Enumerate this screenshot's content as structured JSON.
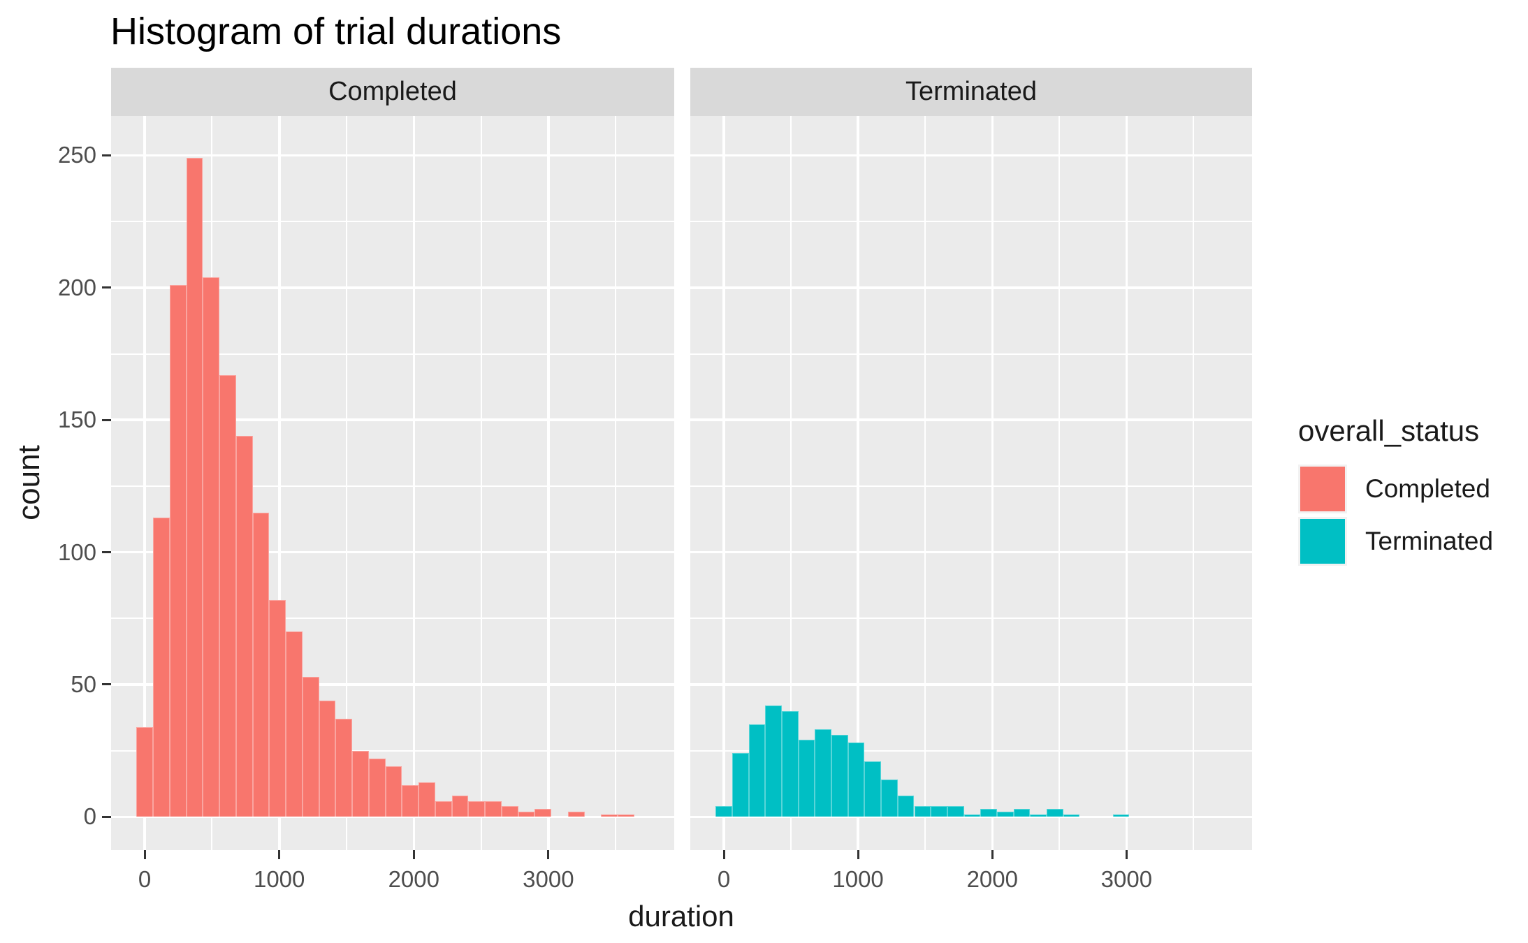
{
  "title": "Histogram of trial durations",
  "style": {
    "background": "#FFFFFF",
    "panel_bg": "#EBEBEB",
    "strip_bg": "#D9D9D9",
    "gridline": "#FFFFFF",
    "tick_mark_color": "#333333",
    "tick_label_color": "#4D4D4D",
    "text_color": "#1A1A1A",
    "completed_color": "#F8766D",
    "terminated_color": "#00BFC4"
  },
  "chart_data": {
    "type": "bar",
    "subtype": "faceted-histogram",
    "title": "Histogram of trial durations",
    "xlabel": "duration",
    "ylabel": "count",
    "binwidth": 123.33,
    "bins_start_center": 0,
    "x_domain": [
      -250,
      3935
    ],
    "y_domain": [
      -12.6,
      264.9
    ],
    "x_ticks": [
      0,
      1000,
      2000,
      3000
    ],
    "x_minor_gridlines": [
      500,
      1500,
      2500,
      3500
    ],
    "y_ticks": [
      0,
      50,
      100,
      150,
      200,
      250
    ],
    "y_minor_gridlines": [
      25,
      75,
      125,
      175,
      225
    ],
    "grid": true,
    "legend_position": "right",
    "facets": [
      {
        "label": "Completed",
        "color": "#F8766D",
        "counts": [
          34,
          113,
          201,
          249,
          204,
          167,
          144,
          115,
          82,
          70,
          53,
          44,
          37,
          25,
          22,
          19,
          12,
          13,
          6,
          8,
          6,
          6,
          4,
          2,
          3,
          0,
          2,
          0,
          1,
          1
        ]
      },
      {
        "label": "Terminated",
        "color": "#00BFC4",
        "counts": [
          4,
          24,
          35,
          42,
          40,
          29,
          33,
          31,
          28,
          21,
          14,
          8,
          4,
          4,
          4,
          1,
          3,
          2,
          3,
          1,
          3,
          1,
          0,
          0,
          1,
          0,
          0,
          0,
          0,
          0
        ]
      }
    ],
    "legend": {
      "title": "overall_status",
      "entries": [
        {
          "label": "Completed",
          "color": "#F8766D"
        },
        {
          "label": "Terminated",
          "color": "#00BFC4"
        }
      ]
    }
  }
}
